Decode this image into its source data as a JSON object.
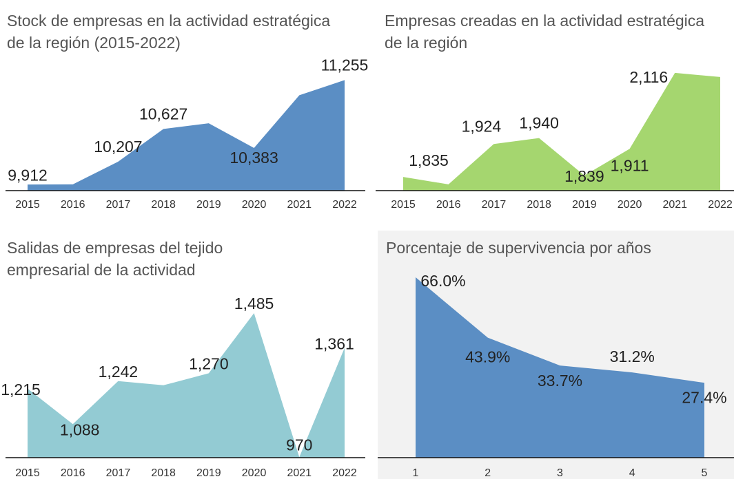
{
  "chart_data": [
    {
      "type": "area",
      "title": "Stock de empresas en la actividad estratégica de la región (2015-2022)",
      "categories": [
        "2015",
        "2016",
        "2017",
        "2018",
        "2019",
        "2020",
        "2021",
        "2022"
      ],
      "values": [
        9912,
        9915,
        10207,
        10627,
        10700,
        10383,
        11060,
        11255
      ],
      "value_labels": [
        "9,912",
        null,
        "10,207",
        "10,627",
        null,
        "10,383",
        null,
        "11,255"
      ],
      "color": "#5b8ec4",
      "ylim": [
        9834,
        11400
      ]
    },
    {
      "type": "area",
      "title": "Empresas creadas en la actividad estratégica de la región",
      "categories": [
        "2015",
        "2016",
        "2017",
        "2018",
        "2019",
        "2020",
        "2021",
        "2022"
      ],
      "values": [
        1835,
        1815,
        1924,
        1940,
        1839,
        1911,
        2116,
        2105
      ],
      "value_labels": [
        "1,835",
        null,
        "1,924",
        "1,940",
        "1,839",
        "1,911",
        "2,116",
        null
      ],
      "color": "#a5d66f",
      "ylim": [
        1798,
        2127
      ]
    },
    {
      "type": "area",
      "title": "Salidas de empresas del tejido empresarial de la actividad",
      "categories": [
        "2015",
        "2016",
        "2017",
        "2018",
        "2019",
        "2020",
        "2021",
        "2022"
      ],
      "values": [
        1215,
        1088,
        1242,
        1227,
        1270,
        1485,
        970,
        1361
      ],
      "value_labels": [
        "1,215",
        "1,088",
        "1,242",
        null,
        "1,270",
        "1,485",
        "970",
        "1,361"
      ],
      "color": "#93cbd3",
      "ylim": [
        968,
        1522
      ]
    },
    {
      "type": "area",
      "title": "Porcentaje de supervivencia por años",
      "categories": [
        "1",
        "2",
        "3",
        "4",
        "5"
      ],
      "values": [
        66.0,
        43.9,
        33.7,
        31.2,
        27.4
      ],
      "value_labels": [
        "66.0%",
        "43.9%",
        "33.7%",
        "31.2%",
        "27.4%"
      ],
      "color": "#5b8ec4",
      "ylim": [
        0,
        70
      ]
    }
  ]
}
